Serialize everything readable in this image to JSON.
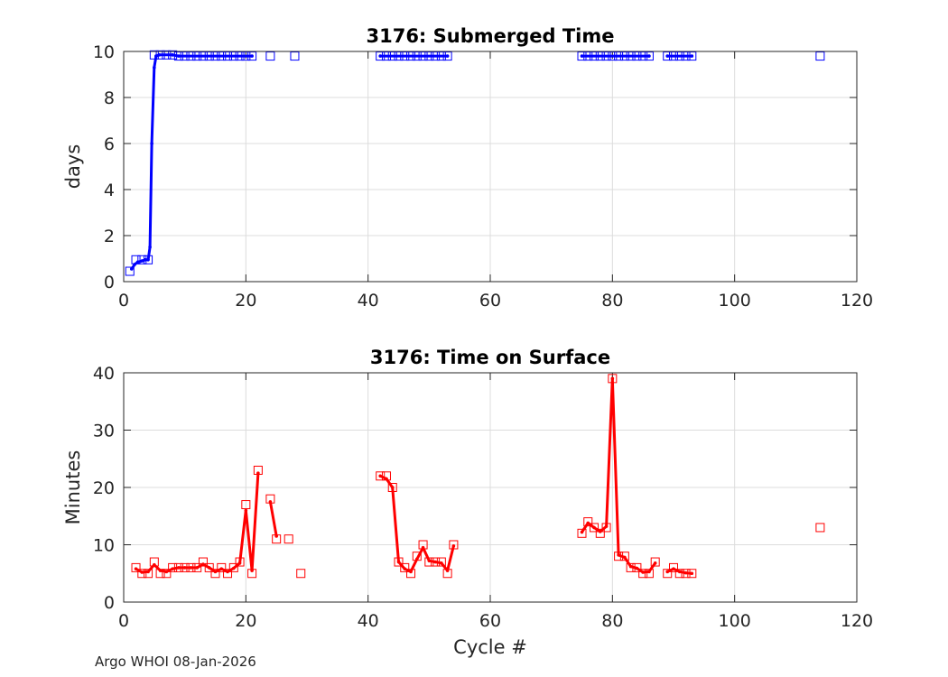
{
  "footer": "Argo WHOI 08-Jan-2026",
  "chart_data": [
    {
      "type": "scatter",
      "title": "3176: Submerged Time",
      "xlabel": "",
      "ylabel": "days",
      "xlim": [
        0,
        120
      ],
      "ylim": [
        0,
        10
      ],
      "xticks": [
        0,
        20,
        40,
        60,
        80,
        100,
        120
      ],
      "yticks": [
        0,
        2,
        4,
        6,
        8,
        10
      ],
      "grid": true,
      "color": "#0000ff",
      "markers": [
        [
          1,
          0.45
        ],
        [
          2,
          0.95
        ],
        [
          3,
          0.95
        ],
        [
          4,
          0.95
        ],
        [
          5,
          9.85
        ],
        [
          6,
          9.85
        ],
        [
          7,
          9.85
        ],
        [
          8,
          9.85
        ],
        [
          9,
          9.8
        ],
        [
          10,
          9.8
        ],
        [
          11,
          9.8
        ],
        [
          12,
          9.8
        ],
        [
          13,
          9.8
        ],
        [
          14,
          9.8
        ],
        [
          15,
          9.8
        ],
        [
          16,
          9.8
        ],
        [
          17,
          9.8
        ],
        [
          18,
          9.8
        ],
        [
          19,
          9.8
        ],
        [
          20,
          9.8
        ],
        [
          21,
          9.8
        ],
        [
          24,
          9.8
        ],
        [
          28,
          9.8
        ],
        [
          42,
          9.8
        ],
        [
          43,
          9.8
        ],
        [
          44,
          9.8
        ],
        [
          45,
          9.8
        ],
        [
          46,
          9.8
        ],
        [
          47,
          9.8
        ],
        [
          48,
          9.8
        ],
        [
          49,
          9.8
        ],
        [
          50,
          9.8
        ],
        [
          51,
          9.8
        ],
        [
          52,
          9.8
        ],
        [
          53,
          9.8
        ],
        [
          75,
          9.8
        ],
        [
          76,
          9.8
        ],
        [
          77,
          9.8
        ],
        [
          78,
          9.8
        ],
        [
          79,
          9.8
        ],
        [
          80,
          9.8
        ],
        [
          81,
          9.8
        ],
        [
          82,
          9.8
        ],
        [
          83,
          9.8
        ],
        [
          84,
          9.8
        ],
        [
          85,
          9.8
        ],
        [
          86,
          9.8
        ],
        [
          89,
          9.8
        ],
        [
          90,
          9.8
        ],
        [
          91,
          9.8
        ],
        [
          92,
          9.8
        ],
        [
          93,
          9.8
        ],
        [
          114,
          9.8
        ]
      ],
      "line_segments": [
        [
          [
            1.3,
            0.55
          ],
          [
            1.8,
            0.75
          ],
          [
            2.3,
            0.85
          ],
          [
            3,
            0.9
          ],
          [
            3.5,
            0.95
          ],
          [
            4,
            0.95
          ],
          [
            4.3,
            1.5
          ],
          [
            4.6,
            6
          ],
          [
            5,
            9.3
          ],
          [
            5.3,
            9.8
          ],
          [
            5.8,
            9.85
          ],
          [
            8,
            9.85
          ],
          [
            9,
            9.8
          ],
          [
            21,
            9.8
          ]
        ],
        [
          [
            42,
            9.8
          ],
          [
            53,
            9.8
          ]
        ],
        [
          [
            75,
            9.8
          ],
          [
            86,
            9.8
          ]
        ],
        [
          [
            89,
            9.8
          ],
          [
            93,
            9.8
          ]
        ]
      ]
    },
    {
      "type": "scatter",
      "title": "3176: Time on Surface",
      "xlabel": "Cycle #",
      "ylabel": "Minutes",
      "xlim": [
        0,
        120
      ],
      "ylim": [
        0,
        40
      ],
      "xticks": [
        0,
        20,
        40,
        60,
        80,
        100,
        120
      ],
      "yticks": [
        0,
        10,
        20,
        30,
        40
      ],
      "grid": true,
      "color": "#ff0000",
      "markers": [
        [
          2,
          6
        ],
        [
          3,
          5
        ],
        [
          4,
          5
        ],
        [
          5,
          7
        ],
        [
          6,
          5
        ],
        [
          7,
          5
        ],
        [
          8,
          6
        ],
        [
          9,
          6
        ],
        [
          10,
          6
        ],
        [
          11,
          6
        ],
        [
          12,
          6
        ],
        [
          13,
          7
        ],
        [
          14,
          6
        ],
        [
          15,
          5
        ],
        [
          16,
          6
        ],
        [
          17,
          5
        ],
        [
          18,
          6
        ],
        [
          19,
          7
        ],
        [
          20,
          17
        ],
        [
          21,
          5
        ],
        [
          22,
          23
        ],
        [
          24,
          18
        ],
        [
          25,
          11
        ],
        [
          27,
          11
        ],
        [
          29,
          5
        ],
        [
          42,
          22
        ],
        [
          43,
          22
        ],
        [
          44,
          20
        ],
        [
          45,
          7
        ],
        [
          46,
          6
        ],
        [
          47,
          5
        ],
        [
          48,
          8
        ],
        [
          49,
          10
        ],
        [
          50,
          7
        ],
        [
          51,
          7
        ],
        [
          52,
          7
        ],
        [
          53,
          5
        ],
        [
          54,
          10
        ],
        [
          75,
          12
        ],
        [
          76,
          14
        ],
        [
          77,
          13
        ],
        [
          78,
          12
        ],
        [
          79,
          13
        ],
        [
          80,
          39
        ],
        [
          81,
          8
        ],
        [
          82,
          8
        ],
        [
          83,
          6
        ],
        [
          84,
          6
        ],
        [
          85,
          5
        ],
        [
          86,
          5
        ],
        [
          87,
          7
        ],
        [
          89,
          5
        ],
        [
          90,
          6
        ],
        [
          91,
          5
        ],
        [
          92,
          5
        ],
        [
          93,
          5
        ],
        [
          114,
          13
        ]
      ],
      "line_segments": [
        [
          [
            2,
            5.8
          ],
          [
            3,
            5.2
          ],
          [
            4,
            5.3
          ],
          [
            5,
            6.5
          ],
          [
            6,
            5.5
          ],
          [
            7,
            5.3
          ],
          [
            8,
            5.8
          ],
          [
            9,
            6
          ],
          [
            10,
            6
          ],
          [
            11,
            6
          ],
          [
            12,
            6
          ],
          [
            13,
            6.6
          ],
          [
            14,
            6
          ],
          [
            15,
            5.3
          ],
          [
            16,
            5.8
          ],
          [
            17,
            5.3
          ],
          [
            18,
            5.9
          ],
          [
            19,
            6.8
          ],
          [
            20,
            16
          ],
          [
            21,
            5.5
          ],
          [
            22,
            22.5
          ]
        ],
        [
          [
            24,
            17.5
          ],
          [
            25,
            11.5
          ]
        ],
        [
          [
            42,
            22
          ],
          [
            43,
            21.5
          ],
          [
            44,
            20
          ],
          [
            45,
            7
          ],
          [
            46,
            5.8
          ],
          [
            47,
            5.3
          ],
          [
            48,
            7.5
          ],
          [
            49,
            9.5
          ],
          [
            50,
            7.2
          ],
          [
            51,
            7
          ],
          [
            52,
            6.8
          ],
          [
            53,
            5.5
          ],
          [
            54,
            9.8
          ]
        ],
        [
          [
            75,
            12.2
          ],
          [
            76,
            13.8
          ],
          [
            77,
            13
          ],
          [
            78,
            12.3
          ],
          [
            79,
            13.2
          ],
          [
            80,
            39
          ],
          [
            81,
            8.2
          ],
          [
            82,
            7.8
          ],
          [
            83,
            6.2
          ],
          [
            84,
            5.9
          ],
          [
            85,
            5.2
          ],
          [
            86,
            5.3
          ],
          [
            87,
            6.8
          ]
        ],
        [
          [
            89,
            5.3
          ],
          [
            90,
            5.8
          ],
          [
            91,
            5.3
          ],
          [
            92,
            5.1
          ],
          [
            93,
            5
          ]
        ]
      ]
    }
  ]
}
